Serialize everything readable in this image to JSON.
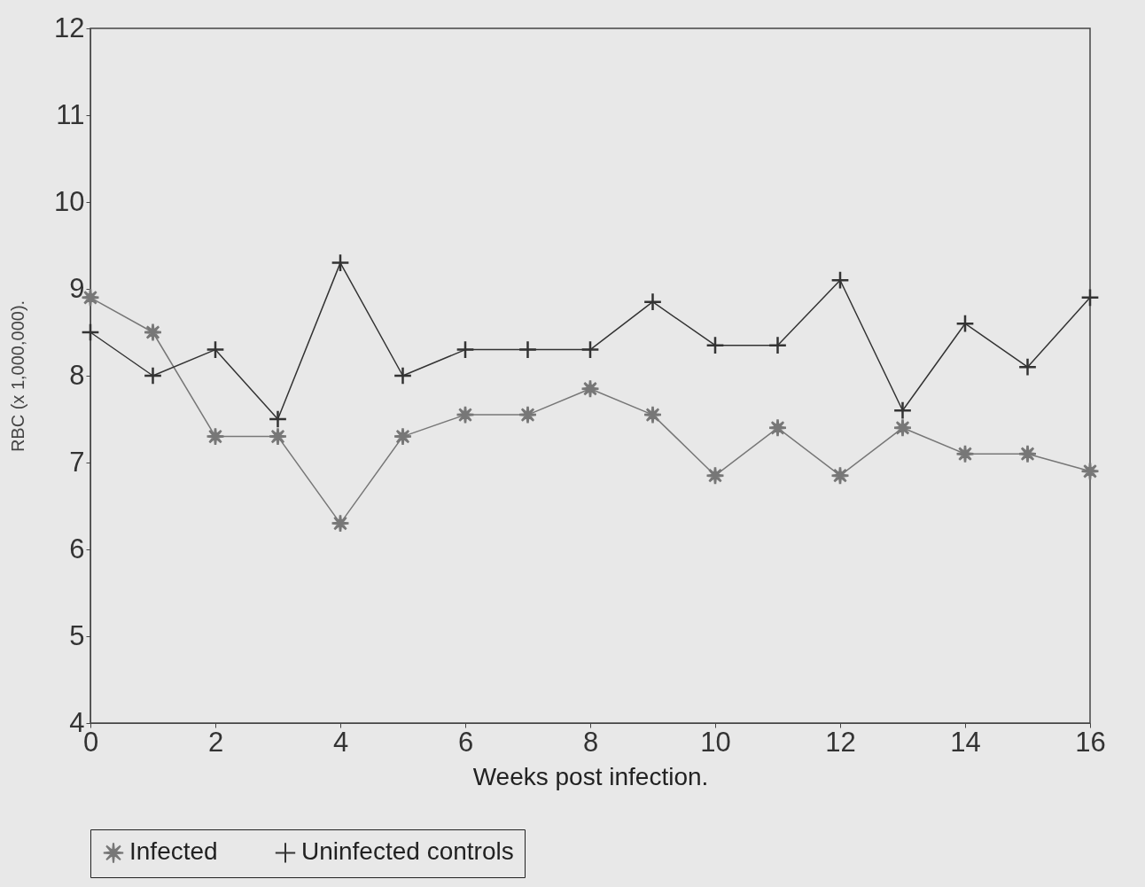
{
  "chart_data": {
    "type": "line",
    "xlabel": "Weeks post infection.",
    "ylabel": "RBC (x 1,000,000).",
    "x": [
      0,
      1,
      2,
      3,
      4,
      5,
      6,
      7,
      8,
      9,
      10,
      11,
      12,
      13,
      14,
      15,
      16
    ],
    "series": [
      {
        "name": "Infected",
        "color": "#777777",
        "marker": "star",
        "values": [
          8.9,
          8.5,
          7.3,
          7.3,
          6.3,
          7.3,
          7.55,
          7.55,
          7.85,
          7.55,
          6.85,
          7.4,
          6.85,
          7.4,
          7.1,
          7.1,
          6.9
        ]
      },
      {
        "name": "Uninfected controls",
        "color": "#333333",
        "marker": "cross",
        "values": [
          8.5,
          8.0,
          8.3,
          7.5,
          9.3,
          8.0,
          8.3,
          8.3,
          8.3,
          8.85,
          8.35,
          8.35,
          9.1,
          7.6,
          8.6,
          8.1,
          8.9
        ]
      }
    ],
    "xlim": [
      0,
      16
    ],
    "xticks": [
      0,
      2,
      4,
      6,
      8,
      10,
      12,
      14,
      16
    ],
    "ylim": [
      4,
      12
    ],
    "yticks": [
      4,
      5,
      6,
      7,
      8,
      9,
      10,
      11,
      12
    ],
    "grid": false,
    "legend": "bottom",
    "line_style": "solid"
  }
}
